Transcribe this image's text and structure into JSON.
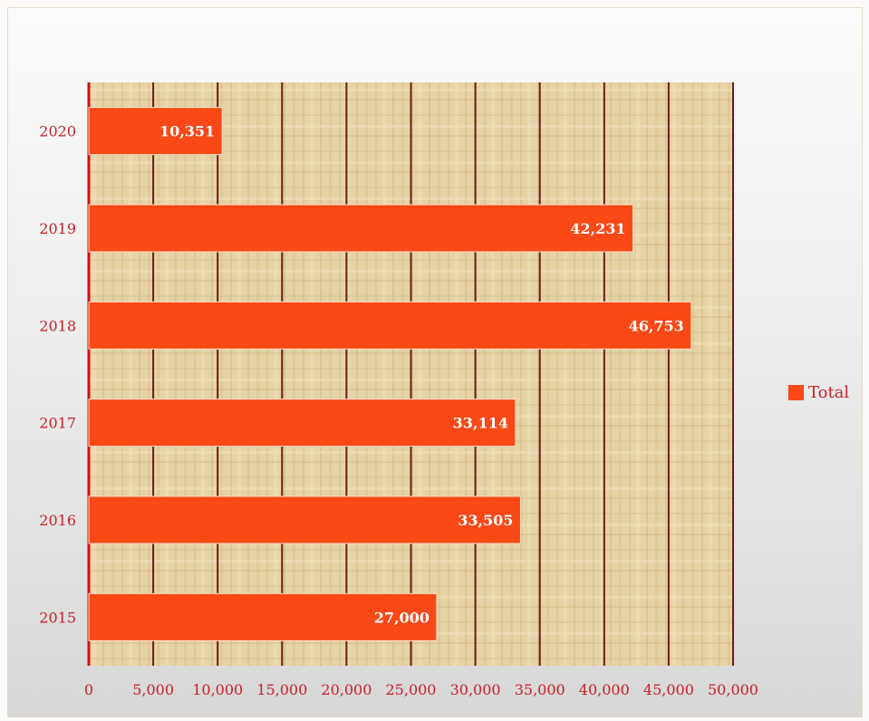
{
  "chart_data": {
    "type": "bar",
    "orientation": "horizontal",
    "categories": [
      "2020",
      "2019",
      "2018",
      "2017",
      "2016",
      "2015"
    ],
    "series": [
      {
        "name": "Total",
        "values": [
          10351,
          42231,
          46753,
          33114,
          33505,
          27000
        ],
        "labels": [
          "10,351",
          "42,231",
          "46,753",
          "33,114",
          "33,505",
          "27,000"
        ]
      }
    ],
    "xlim": [
      0,
      50000
    ],
    "xticks": [
      0,
      5000,
      10000,
      15000,
      20000,
      25000,
      30000,
      35000,
      40000,
      45000,
      50000
    ],
    "xtick_labels": [
      "0",
      "5,000",
      "10,000",
      "15,000",
      "20,000",
      "25,000",
      "30,000",
      "35,000",
      "40,000",
      "45,000",
      "50,000"
    ],
    "grid": true,
    "legend_position": "right",
    "title": "",
    "xlabel": "",
    "ylabel": ""
  },
  "colors": {
    "bar": "#fa4817",
    "bar_edge": "#ffe2c8",
    "gridline": "#6b1a1a",
    "axis_line": "#d01010",
    "tick_text": "#c8202a",
    "plot_background": "#e6d3a5",
    "plot_texture": "#cfb878"
  },
  "legend": {
    "label": "Total"
  }
}
